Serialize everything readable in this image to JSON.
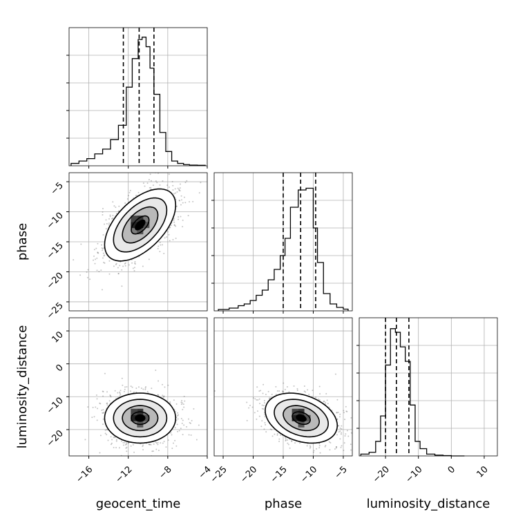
{
  "chart_data": {
    "type": "corner",
    "parameters": [
      "geocent_time",
      "phase",
      "luminosity_distance"
    ],
    "axis_labels": {
      "x": [
        "geocent_time",
        "phase",
        "luminosity_distance"
      ],
      "y": [
        "phase",
        "luminosity_distance"
      ]
    },
    "ranges": {
      "geocent_time": [
        -18,
        -4
      ],
      "phase": [
        -26.5,
        -3.5
      ],
      "luminosity_distance": [
        -28,
        14
      ]
    },
    "ticks": {
      "geocent_time": [
        -16,
        -12,
        -8,
        -4
      ],
      "phase": [
        -25,
        -20,
        -15,
        -10,
        -5
      ],
      "luminosity_distance": [
        -20,
        -10,
        0,
        10
      ]
    },
    "grid": true,
    "quantiles": {
      "geocent_time": [
        -12.5,
        -10.9,
        -9.4
      ],
      "phase": [
        -15.0,
        -12.1,
        -9.6
      ],
      "luminosity_distance": [
        -20.0,
        -16.7,
        -12.9
      ]
    },
    "histograms": {
      "geocent_time": {
        "bin_edges": [
          -17.8,
          -17.0,
          -16.2,
          -15.4,
          -14.6,
          -13.8,
          -13.0,
          -12.2,
          -11.6,
          -11.0,
          -10.6,
          -10.2,
          -9.8,
          -9.4,
          -8.8,
          -8.2,
          -7.6,
          -7.0,
          -6.4,
          -5.8,
          -5.0,
          -4.2
        ],
        "counts": [
          1,
          2,
          3,
          5,
          7,
          11,
          17,
          33,
          45,
          53,
          54,
          50,
          41,
          30,
          14,
          6,
          2,
          1,
          0.5,
          0.3,
          0.2
        ],
        "ymax": 58
      },
      "phase": {
        "bin_edges": [
          -25.8,
          -24.0,
          -22.5,
          -21.5,
          -20.5,
          -19.5,
          -18.5,
          -17.5,
          -16.5,
          -15.5,
          -14.7,
          -13.8,
          -12.5,
          -11.2,
          -10.0,
          -9.3,
          -8.3,
          -7.2,
          -6.1,
          -5.0,
          -4.2
        ],
        "counts": [
          0.4,
          0.8,
          1.5,
          2,
          3,
          4.5,
          6,
          9,
          12,
          16,
          21,
          30,
          35,
          35.5,
          24,
          14,
          5,
          2,
          1,
          0.5
        ],
        "ymax": 40
      },
      "luminosity_distance": {
        "bin_edges": [
          -27.5,
          -25.0,
          -23.0,
          -21.5,
          -20.0,
          -18.5,
          -17.0,
          -15.5,
          -14.0,
          -12.5,
          -11.0,
          -9.5,
          -7.5,
          -5.0,
          -2.5,
          0,
          2,
          4
        ],
        "counts": [
          0.5,
          1,
          4,
          11,
          25,
          35,
          34,
          30,
          26,
          14,
          4,
          2,
          0.5,
          0.2,
          0.1,
          0,
          0
        ],
        "ymax": 38
      }
    },
    "joint_distributions": [
      {
        "x": "geocent_time",
        "y": "phase",
        "mean": [
          -10.8,
          -12.2
        ],
        "std": [
          1.8,
          3.0
        ],
        "rho": 0.55
      },
      {
        "x": "geocent_time",
        "y": "luminosity_distance",
        "mean": [
          -10.8,
          -16.5
        ],
        "std": [
          1.8,
          3.8
        ],
        "rho": 0.0
      },
      {
        "x": "phase",
        "y": "luminosity_distance",
        "mean": [
          -12.0,
          -16.5
        ],
        "std": [
          3.0,
          3.8
        ],
        "rho": -0.3
      }
    ],
    "contour_levels_sigma": [
      0.5,
      1.0,
      1.5,
      2.0
    ]
  }
}
